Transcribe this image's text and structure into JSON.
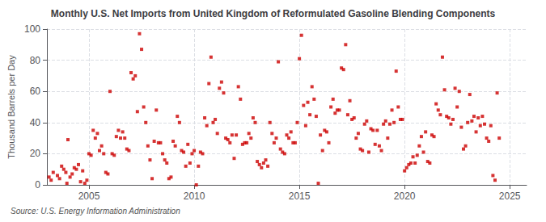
{
  "chart_data": {
    "type": "scatter",
    "title": "Monthly U.S. Net Imports from United Kingdom of Reformulated Gasoline Blending Components",
    "ylabel": "Thousand Barrels per Day",
    "annotations": [
      "Source: U.S. Energy Information Administration"
    ],
    "color": "#cc0000",
    "marker": "square",
    "grid": true,
    "xlim": [
      2003.0,
      2025.8
    ],
    "ylim": [
      0,
      100
    ],
    "xticks": [
      2005,
      2010,
      2015,
      2020,
      2025
    ],
    "yticks": [
      0,
      20,
      40,
      60,
      80,
      100
    ],
    "x": [
      2003.1,
      2003.2,
      2003.3,
      2003.5,
      2003.6,
      2003.7,
      2003.8,
      2003.9,
      2003.95,
      2004.0,
      2004.1,
      2004.2,
      2004.3,
      2004.4,
      2004.5,
      2004.6,
      2004.7,
      2004.8,
      2004.9,
      2005.0,
      2005.1,
      2005.2,
      2005.3,
      2005.4,
      2005.5,
      2005.6,
      2005.7,
      2005.8,
      2005.9,
      2006.0,
      2006.1,
      2006.2,
      2006.3,
      2006.4,
      2006.5,
      2006.6,
      2006.7,
      2006.8,
      2006.9,
      2007.0,
      2007.1,
      2007.2,
      2007.3,
      2007.4,
      2007.5,
      2007.6,
      2007.7,
      2007.8,
      2007.9,
      2008.0,
      2008.1,
      2008.2,
      2008.3,
      2008.4,
      2008.5,
      2008.6,
      2008.7,
      2008.8,
      2008.9,
      2009.0,
      2009.1,
      2009.2,
      2009.3,
      2009.4,
      2009.5,
      2009.6,
      2009.7,
      2009.8,
      2009.9,
      2010.0,
      2010.1,
      2010.2,
      2010.3,
      2010.4,
      2010.5,
      2010.6,
      2010.7,
      2010.8,
      2010.9,
      2011.0,
      2011.1,
      2011.2,
      2011.3,
      2011.4,
      2011.5,
      2011.6,
      2011.7,
      2011.8,
      2011.9,
      2012.0,
      2012.1,
      2012.2,
      2012.3,
      2012.4,
      2012.5,
      2012.6,
      2012.7,
      2012.8,
      2012.9,
      2013.0,
      2013.1,
      2013.2,
      2013.3,
      2013.4,
      2013.5,
      2013.6,
      2013.7,
      2013.8,
      2013.9,
      2014.0,
      2014.1,
      2014.2,
      2014.3,
      2014.4,
      2014.5,
      2014.6,
      2014.7,
      2014.8,
      2014.9,
      2015.0,
      2015.1,
      2015.2,
      2015.3,
      2015.4,
      2015.5,
      2015.6,
      2015.7,
      2015.8,
      2015.9,
      2016.0,
      2016.1,
      2016.2,
      2016.3,
      2016.4,
      2016.5,
      2016.6,
      2016.7,
      2016.8,
      2016.9,
      2017.0,
      2017.1,
      2017.2,
      2017.3,
      2017.4,
      2017.5,
      2017.6,
      2017.7,
      2017.8,
      2017.9,
      2018.0,
      2018.1,
      2018.2,
      2018.3,
      2018.4,
      2018.5,
      2018.6,
      2018.7,
      2018.8,
      2018.9,
      2019.0,
      2019.1,
      2019.2,
      2019.3,
      2019.4,
      2019.5,
      2019.6,
      2019.7,
      2019.8,
      2019.9,
      2020.0,
      2020.1,
      2020.2,
      2020.3,
      2020.4,
      2020.5,
      2020.6,
      2020.7,
      2020.8,
      2020.9,
      2021.0,
      2021.1,
      2021.2,
      2021.3,
      2021.4,
      2021.5,
      2021.6,
      2021.7,
      2021.8,
      2021.9,
      2022.0,
      2022.1,
      2022.2,
      2022.3,
      2022.4,
      2022.5,
      2022.6,
      2022.7,
      2022.8,
      2022.9,
      2023.0,
      2023.1,
      2023.2,
      2023.3,
      2023.4,
      2023.5,
      2023.6,
      2023.7,
      2023.8,
      2023.9,
      2024.0,
      2024.1,
      2024.2,
      2024.3,
      2024.4,
      2024.5
    ],
    "values": [
      5,
      3,
      8,
      6,
      4,
      12,
      10,
      8,
      1,
      29,
      5,
      7,
      11,
      10,
      13,
      2,
      9,
      1,
      3,
      20,
      19,
      35,
      30,
      33,
      22,
      25,
      20,
      8,
      7,
      60,
      20,
      19,
      31,
      35,
      30,
      34,
      30,
      23,
      22,
      72,
      68,
      70,
      47,
      97,
      87,
      50,
      40,
      25,
      16,
      4,
      28,
      48,
      27,
      27,
      20,
      16,
      14,
      4,
      5,
      28,
      25,
      44,
      40,
      22,
      21,
      12,
      26,
      14,
      20,
      22,
      0,
      12,
      21,
      20,
      43,
      38,
      65,
      82,
      40,
      42,
      33,
      62,
      66,
      59,
      30,
      29,
      27,
      32,
      17,
      32,
      63,
      55,
      26,
      27,
      27,
      33,
      30,
      43,
      40,
      15,
      13,
      11,
      14,
      16,
      12,
      40,
      33,
      27,
      30,
      79,
      23,
      21,
      20,
      32,
      30,
      34,
      27,
      27,
      40,
      81,
      96,
      51,
      38,
      53,
      45,
      63,
      55,
      44,
      1,
      32,
      22,
      35,
      34,
      27,
      50,
      55,
      46,
      48,
      48,
      75,
      74,
      90,
      45,
      54,
      42,
      43,
      30,
      33,
      23,
      22,
      39,
      41,
      21,
      36,
      35,
      26,
      35,
      25,
      22,
      39,
      41,
      30,
      39,
      48,
      40,
      73,
      50,
      42,
      42,
      9,
      11,
      13,
      14,
      18,
      14,
      19,
      25,
      31,
      21,
      34,
      15,
      14,
      32,
      31,
      52,
      48,
      45,
      82,
      61,
      44,
      43,
      39,
      42,
      62,
      50,
      60,
      37,
      23,
      25,
      40,
      58,
      41,
      44,
      34,
      43,
      38,
      44,
      39,
      30,
      28,
      38,
      6,
      3,
      59,
      30
    ]
  }
}
